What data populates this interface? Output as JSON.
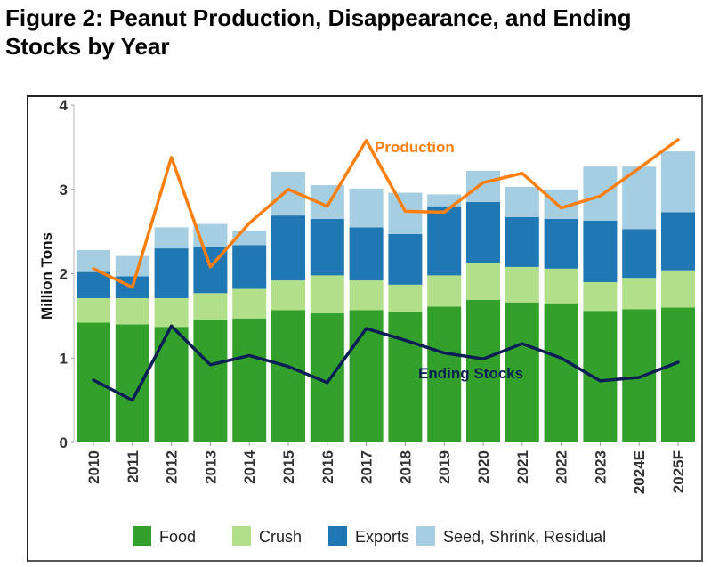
{
  "figure_title": "Figure 2: Peanut Production, Disappearance, and Ending Stocks by Year",
  "chart_data": {
    "type": "bar",
    "stacked": true,
    "title": "Figure 2: Peanut Production, Disappearance, and Ending Stocks by Year",
    "xlabel": "",
    "ylabel": "Million Tons",
    "ylim": [
      0,
      4
    ],
    "yticks": [
      0,
      1,
      2,
      3,
      4
    ],
    "grid": false,
    "legend_position": "bottom",
    "categories": [
      "2010",
      "2011",
      "2012",
      "2013",
      "2014",
      "2015",
      "2016",
      "2017",
      "2018",
      "2019",
      "2020",
      "2021",
      "2022",
      "2023",
      "2024E",
      "2025F"
    ],
    "series": [
      {
        "name": "Food",
        "color": "#33a02c",
        "values": [
          1.42,
          1.4,
          1.37,
          1.45,
          1.47,
          1.57,
          1.53,
          1.57,
          1.55,
          1.61,
          1.69,
          1.66,
          1.65,
          1.56,
          1.58,
          1.6
        ]
      },
      {
        "name": "Crush",
        "color": "#b2df8a",
        "values": [
          0.29,
          0.31,
          0.34,
          0.32,
          0.35,
          0.35,
          0.45,
          0.35,
          0.32,
          0.37,
          0.44,
          0.42,
          0.41,
          0.34,
          0.37,
          0.44
        ]
      },
      {
        "name": "Exports",
        "color": "#1f78b4",
        "values": [
          0.31,
          0.26,
          0.59,
          0.55,
          0.52,
          0.77,
          0.67,
          0.63,
          0.6,
          0.82,
          0.72,
          0.59,
          0.59,
          0.73,
          0.58,
          0.69
        ]
      },
      {
        "name": "Seed, Shrink, Residual",
        "color": "#a6cee3",
        "values": [
          0.26,
          0.24,
          0.25,
          0.27,
          0.17,
          0.52,
          0.4,
          0.46,
          0.49,
          0.14,
          0.37,
          0.36,
          0.35,
          0.64,
          0.74,
          0.72
        ]
      }
    ],
    "lines": [
      {
        "name": "Production",
        "label": "Production",
        "color": "#ff7f0e",
        "values": [
          2.06,
          1.84,
          3.38,
          2.08,
          2.6,
          3.0,
          2.8,
          3.58,
          2.74,
          2.73,
          3.08,
          3.19,
          2.78,
          2.92,
          3.25,
          3.59
        ]
      },
      {
        "name": "Ending Stocks",
        "label": "Ending Stocks",
        "color": "#0b1f55",
        "values": [
          0.74,
          0.5,
          1.38,
          0.92,
          1.03,
          0.9,
          0.71,
          1.35,
          1.21,
          1.06,
          0.99,
          1.17,
          1.0,
          0.73,
          0.77,
          0.95
        ]
      }
    ]
  }
}
